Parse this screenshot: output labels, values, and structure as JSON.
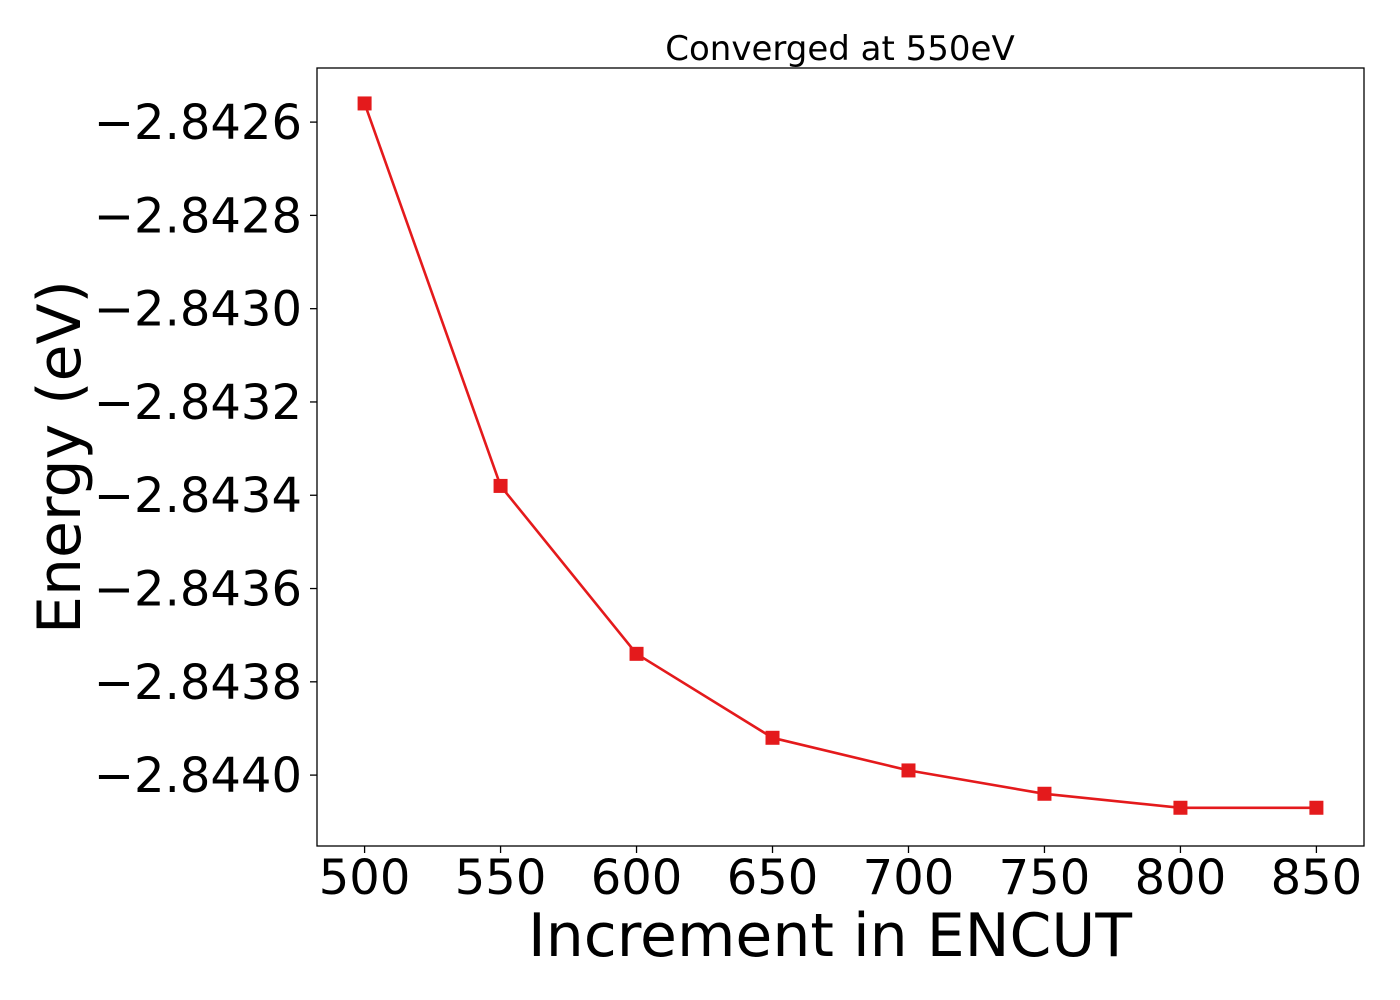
{
  "chart_data": {
    "type": "line",
    "title": "Converged at 550eV",
    "xlabel": "Increment in ENCUT",
    "ylabel": "Energy (eV)",
    "x": [
      500,
      550,
      600,
      650,
      700,
      750,
      800,
      850
    ],
    "series": [
      {
        "values": [
          -2.84256,
          -2.84338,
          -2.84374,
          -2.84392,
          -2.84399,
          -2.84404,
          -2.84407,
          -2.84407
        ],
        "color": "#e41a1c",
        "marker": "square"
      }
    ],
    "xticks": [
      500,
      550,
      600,
      650,
      700,
      750,
      800,
      850
    ],
    "xtick_labels": [
      "500",
      "550",
      "600",
      "650",
      "700",
      "750",
      "800",
      "850"
    ],
    "yticks": [
      -2.8426,
      -2.8428,
      -2.843,
      -2.8432,
      -2.8434,
      -2.8436,
      -2.8438,
      -2.844
    ],
    "ytick_labels": [
      "−2.8426",
      "−2.8428",
      "−2.8430",
      "−2.8432",
      "−2.8434",
      "−2.8436",
      "−2.8438",
      "−2.8440"
    ],
    "xlim": [
      482.5,
      867.5
    ],
    "ylim": [
      -2.844152,
      -2.842484
    ],
    "grid": false,
    "legend": "none"
  }
}
